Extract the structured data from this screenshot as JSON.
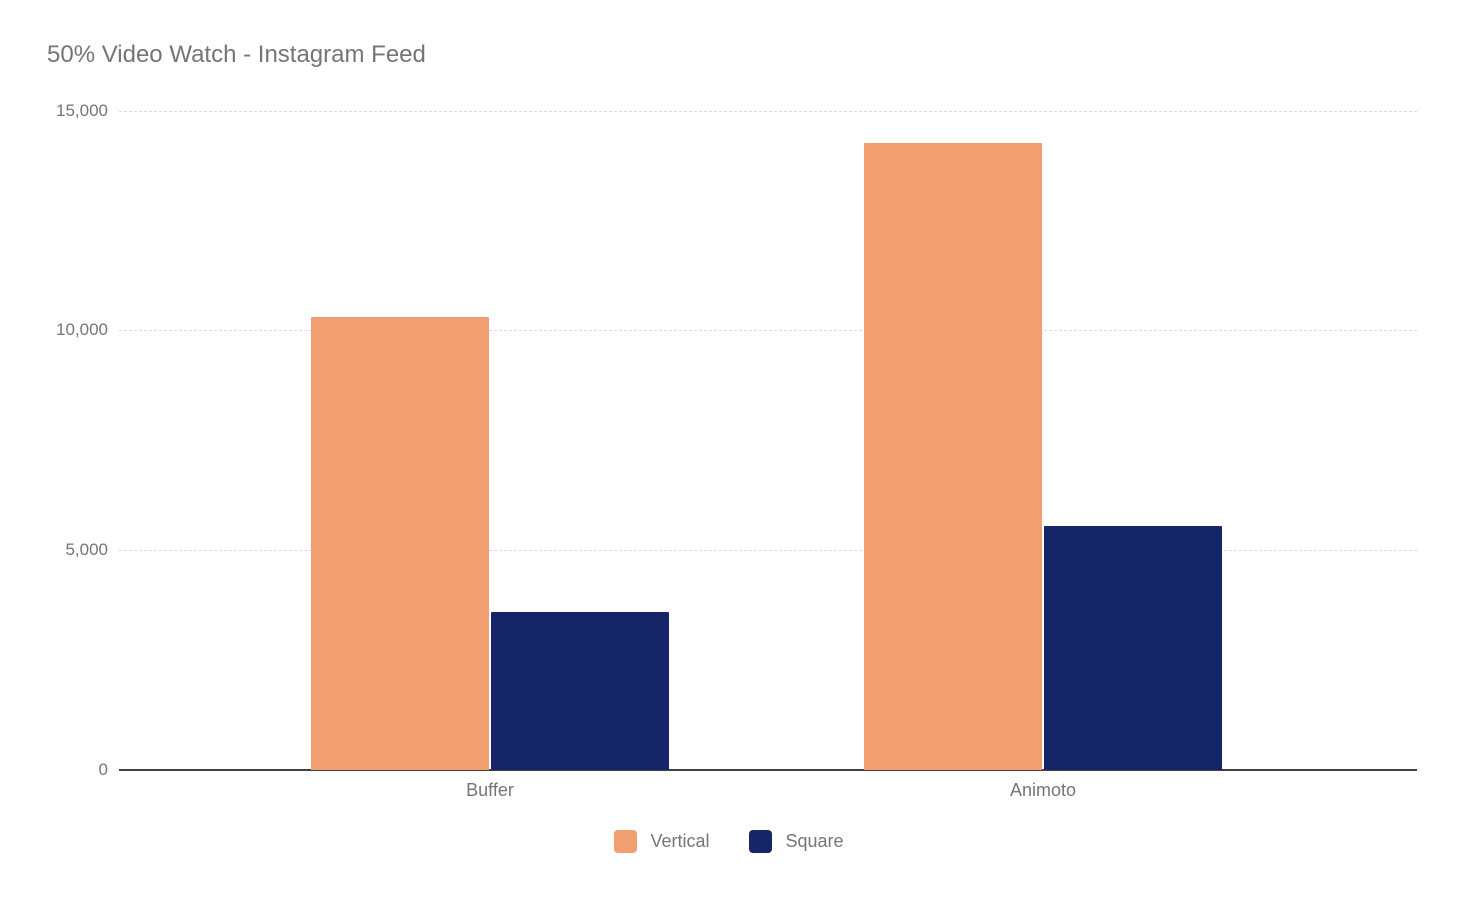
{
  "chart_data": {
    "type": "bar",
    "title": "50% Video Watch - Instagram Feed",
    "categories": [
      "Buffer",
      "Animoto"
    ],
    "series": [
      {
        "name": "Vertical",
        "color": "#F19E70",
        "values": [
          10300,
          14250
        ]
      },
      {
        "name": "Square",
        "color": "#152567",
        "values": [
          3600,
          5550
        ]
      }
    ],
    "xlabel": "",
    "ylabel": "",
    "ylim": [
      0,
      15000
    ],
    "yticks": [
      {
        "value": 15000,
        "label": "15,000"
      },
      {
        "value": 10000,
        "label": "10,000"
      },
      {
        "value": 5000,
        "label": "5,000"
      },
      {
        "value": 0,
        "label": "0"
      }
    ],
    "grid": true,
    "legend_position": "bottom",
    "colors": {
      "title_text": "#757575",
      "tick_text": "#757575",
      "gridline": "#dcdcdc",
      "axis_line": "#424242",
      "background": "#ffffff"
    }
  }
}
